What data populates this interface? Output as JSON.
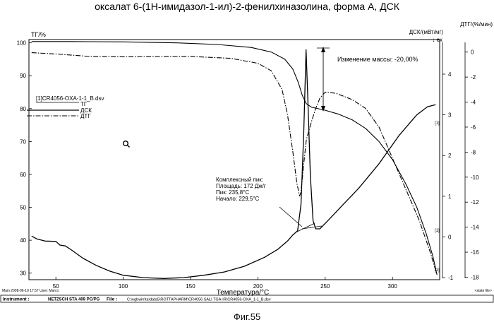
{
  "title": "оксалат 6-(1Н-имидазол-1-ил)-2-фенилхиназолина, форма А, ДСК",
  "figure_label": "Фиг.55",
  "chart_data": {
    "type": "line",
    "xlabel": "Температура/°С",
    "xlim": [
      30,
      335
    ],
    "x_ticks": [
      50,
      100,
      150,
      200,
      250,
      300
    ],
    "axes": {
      "tg": {
        "label": "ТГ/%",
        "ylim": [
          28,
          101
        ],
        "ticks": [
          100,
          90,
          80,
          70,
          60,
          50,
          40,
          30
        ]
      },
      "dsc": {
        "label": "ДСК/(мВт/мг)",
        "direction": "↓ ex",
        "ylim": [
          -1.05,
          4.85
        ],
        "ticks": [
          4,
          3,
          2,
          1,
          0,
          -1
        ]
      },
      "dtg": {
        "label": "ДТГ/(%/мин)",
        "ylim": [
          -18.2,
          1
        ],
        "ticks": [
          0,
          -2,
          -4,
          -6,
          -8,
          -10,
          -12,
          -14,
          -16,
          -18
        ]
      }
    },
    "legend": {
      "file": "[1]CR4056-OXA-1-1_B.dsv",
      "entries": [
        "ТГ",
        "ДСК",
        "ДТГ"
      ]
    },
    "series": [
      {
        "name": "ТГ",
        "axis": "tg",
        "style": "solid",
        "points": [
          [
            32,
            100.4
          ],
          [
            60,
            100.4
          ],
          [
            100,
            100.3
          ],
          [
            140,
            100
          ],
          [
            170,
            99.5
          ],
          [
            195,
            98.6
          ],
          [
            210,
            97.2
          ],
          [
            220,
            95
          ],
          [
            226,
            92
          ],
          [
            230,
            88
          ],
          [
            233,
            84
          ],
          [
            236,
            81.5
          ],
          [
            240,
            80.4
          ],
          [
            250,
            79.5
          ],
          [
            260,
            78.3
          ],
          [
            270,
            76.6
          ],
          [
            280,
            74
          ],
          [
            290,
            70
          ],
          [
            300,
            64.5
          ],
          [
            310,
            57
          ],
          [
            318,
            50
          ],
          [
            325,
            42
          ],
          [
            330,
            35
          ],
          [
            333,
            29.5
          ]
        ]
      },
      {
        "name": "ДСК",
        "axis": "dsc",
        "style": "solid",
        "points": [
          [
            32,
            0.02
          ],
          [
            36,
            -0.05
          ],
          [
            42,
            -0.1
          ],
          [
            50,
            -0.11
          ],
          [
            53,
            -0.2
          ],
          [
            57,
            -0.22
          ],
          [
            62,
            -0.33
          ],
          [
            70,
            -0.52
          ],
          [
            80,
            -0.7
          ],
          [
            90,
            -0.84
          ],
          [
            100,
            -0.94
          ],
          [
            115,
            -1.0
          ],
          [
            130,
            -1.02
          ],
          [
            145,
            -1.0
          ],
          [
            160,
            -0.94
          ],
          [
            175,
            -0.86
          ],
          [
            190,
            -0.72
          ],
          [
            205,
            -0.5
          ],
          [
            215,
            -0.3
          ],
          [
            222,
            -0.1
          ],
          [
            226,
            0.05
          ],
          [
            229.5,
            0.15
          ],
          [
            232,
            0.8
          ],
          [
            234,
            2.5
          ],
          [
            235.8,
            4.6
          ],
          [
            237,
            3.5
          ],
          [
            239,
            1.5
          ],
          [
            241,
            0.4
          ],
          [
            243,
            0.2
          ],
          [
            246,
            0.2
          ],
          [
            252,
            0.4
          ],
          [
            262,
            0.75
          ],
          [
            275,
            1.2
          ],
          [
            290,
            1.8
          ],
          [
            305,
            2.5
          ],
          [
            318,
            3.0
          ],
          [
            326,
            3.2
          ],
          [
            332,
            3.25
          ]
        ]
      },
      {
        "name": "ДТГ",
        "axis": "dtg",
        "style": "dash-dot",
        "points": [
          [
            32,
            -0.05
          ],
          [
            50,
            -0.15
          ],
          [
            75,
            -0.35
          ],
          [
            100,
            -0.38
          ],
          [
            150,
            -0.35
          ],
          [
            180,
            -0.5
          ],
          [
            200,
            -0.9
          ],
          [
            210,
            -1.5
          ],
          [
            218,
            -3
          ],
          [
            222,
            -5
          ],
          [
            226,
            -8
          ],
          [
            229,
            -10.5
          ],
          [
            231,
            -11.5
          ],
          [
            232,
            -11.2
          ],
          [
            234,
            -9
          ],
          [
            236,
            -7
          ],
          [
            240,
            -5.5
          ],
          [
            243,
            -4.5
          ],
          [
            246,
            -3.7
          ],
          [
            250,
            -3.2
          ],
          [
            258,
            -3.3
          ],
          [
            270,
            -3.8
          ],
          [
            280,
            -4.5
          ],
          [
            290,
            -6
          ],
          [
            300,
            -8.5
          ],
          [
            310,
            -11
          ],
          [
            320,
            -13.5
          ],
          [
            328,
            -16
          ],
          [
            333,
            -17.8
          ]
        ]
      }
    ],
    "annotations": {
      "mass_change": "Изменение массы: -20,00%",
      "complex_peak": [
        "Комплексный пик:",
        "Площадь: 172 Дж/г",
        "Пик: 235,8°С",
        "Начало: 229,5°С"
      ],
      "curve_marks": [
        "[1]",
        "[1]",
        "[1]"
      ]
    }
  },
  "footer": {
    "main_line": "Main   2008-06-10 17:57   User: Marco",
    "state_file": "<state file>",
    "instrument_label": "Instrument :",
    "instrument": "NETZSCH STA 409 PC/PG",
    "file_label": "File :",
    "file": "C:\\ngbwin\\ta\\data5\\ROTTAPHARM\\CR4056 SALI TGA-IR\\CR4056-OXA_1-1_B.dsv"
  }
}
